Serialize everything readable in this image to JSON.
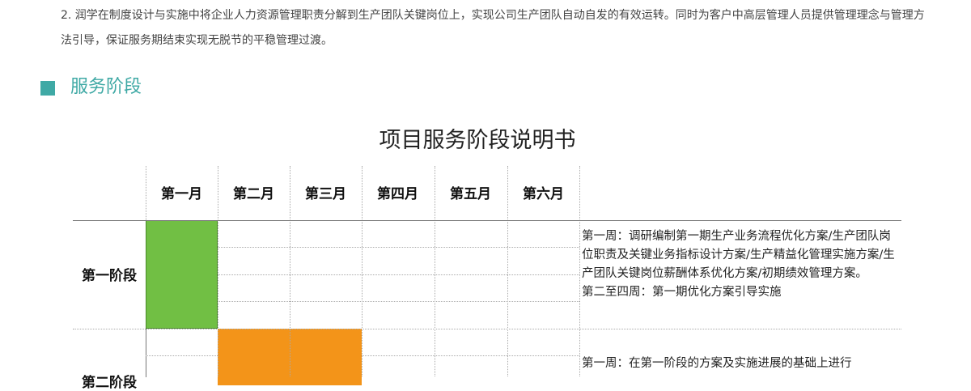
{
  "intro": {
    "paragraph": "2. 润学在制度设计与实施中将企业人力资源管理职责分解到生产团队关键岗位上，实现公司生产团队自动自发的有效运转。同时为客户中高层管理人员提供管理理念与管理方法引导，保证服务期结束实现无脱节的平稳管理过渡。"
  },
  "section": {
    "title": "服务阶段",
    "accent_color": "#3fa9a5"
  },
  "table": {
    "title": "项目服务阶段说明书",
    "months": [
      "第一月",
      "第二月",
      "第三月",
      "第四月",
      "第五月",
      "第六月"
    ],
    "phases": [
      {
        "label": "第一阶段",
        "bar_color": "#71bf44",
        "months_active": [
          1
        ],
        "description": [
          "第一周：调研编制第一期生产业务流程优化方案/生产团队岗位职责及关键业务指标设计方案/生产精益化管理实施方案/生产团队关键岗位薪酬体系优化方案/初期绩效管理方案。",
          "第二至四周：第一期优化方案引导实施"
        ]
      },
      {
        "label": "第二阶段",
        "bar_color": "#f39419",
        "months_active": [
          2,
          3
        ],
        "description": [
          "第一周：在第一阶段的方案及实施进展的基础上进行"
        ]
      }
    ]
  }
}
